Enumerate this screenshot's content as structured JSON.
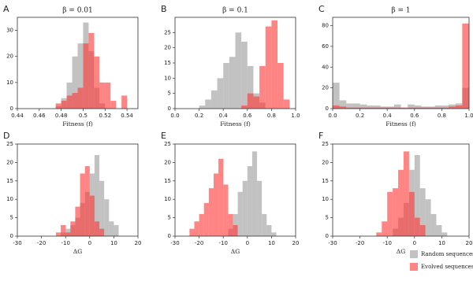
{
  "chart_data": [
    {
      "type": "histogram",
      "label": "A",
      "title": "β = 0.01",
      "xlabel": "Fitness (f)",
      "xlim": [
        0.44,
        0.55
      ],
      "xticks": [
        0.44,
        0.46,
        0.48,
        0.5,
        0.52,
        0.54
      ],
      "ylim": [
        0,
        35
      ],
      "yticks": [
        0,
        10,
        20,
        30
      ],
      "series": [
        {
          "name": "Random sequences",
          "color": "#999999",
          "bins": [
            0.475,
            0.48,
            0.485,
            0.49,
            0.495,
            0.5,
            0.505,
            0.51,
            0.515,
            0.52
          ],
          "values": [
            1,
            4,
            10,
            20,
            25,
            33,
            22,
            8,
            2
          ]
        },
        {
          "name": "Evolved sequences",
          "color": "#ff3333",
          "bins": [
            0.475,
            0.48,
            0.485,
            0.49,
            0.495,
            0.5,
            0.505,
            0.51,
            0.515,
            0.52,
            0.525,
            0.53,
            0.535,
            0.54
          ],
          "values": [
            2,
            3,
            5,
            6,
            8,
            25,
            29,
            20,
            10,
            10,
            3,
            0,
            5
          ]
        }
      ]
    },
    {
      "type": "histogram",
      "label": "B",
      "title": "β = 0.1",
      "xlabel": "Fitness (f)",
      "xlim": [
        0,
        1
      ],
      "xticks": [
        {
          "value": 0,
          "label": "0.0"
        },
        0.2,
        0.4,
        0.6,
        0.8,
        {
          "value": 1,
          "label": "1.0"
        }
      ],
      "ylim": [
        0,
        30
      ],
      "yticks": [
        0,
        5,
        10,
        15,
        20,
        25
      ],
      "series": [
        {
          "color": "#999999",
          "bins": [
            0.2,
            0.25,
            0.3,
            0.35,
            0.4,
            0.45,
            0.5,
            0.55,
            0.6,
            0.65,
            0.7,
            0.75
          ],
          "values": [
            1,
            3,
            6,
            10,
            15,
            17,
            25,
            22,
            14,
            5,
            2
          ]
        },
        {
          "color": "#ff3333",
          "bins": [
            0.55,
            0.6,
            0.65,
            0.7,
            0.75,
            0.8,
            0.85,
            0.9,
            0.95
          ],
          "values": [
            1,
            5,
            4,
            14,
            27,
            29,
            15,
            3
          ]
        }
      ]
    },
    {
      "type": "histogram",
      "label": "C",
      "title": "β = 1",
      "xlabel": "Fitness (f)",
      "xlim": [
        0,
        1
      ],
      "xticks": [
        {
          "value": 0,
          "label": "0.0"
        },
        0.2,
        0.4,
        0.6,
        0.8,
        {
          "value": 1,
          "label": "1.0"
        }
      ],
      "ylim": [
        0,
        88
      ],
      "yticks": [
        0,
        20,
        40,
        60,
        80
      ],
      "series": [
        {
          "color": "#999999",
          "bins": [
            0,
            0.05,
            0.1,
            0.15,
            0.2,
            0.25,
            0.3,
            0.35,
            0.4,
            0.45,
            0.5,
            0.55,
            0.6,
            0.65,
            0.7,
            0.75,
            0.8,
            0.85,
            0.9,
            0.95,
            1
          ],
          "values": [
            25,
            8,
            5,
            5,
            4,
            3,
            3,
            2,
            2,
            4,
            1,
            4,
            3,
            2,
            2,
            3,
            3,
            4,
            5,
            20
          ]
        },
        {
          "color": "#ff3333",
          "bins": [
            0,
            0.05,
            0.1,
            0.15,
            0.2,
            0.25,
            0.3,
            0.35,
            0.4,
            0.45,
            0.5,
            0.55,
            0.6,
            0.65,
            0.7,
            0.75,
            0.8,
            0.85,
            0.9,
            0.95,
            1
          ],
          "values": [
            3,
            2,
            1,
            1,
            1,
            1,
            1,
            1,
            1,
            1,
            1,
            1,
            1,
            1,
            1,
            1,
            1,
            2,
            3,
            82
          ]
        }
      ]
    },
    {
      "type": "histogram",
      "label": "D",
      "xlabel": "ΔG",
      "xlim": [
        -30,
        20
      ],
      "xticks": [
        -30,
        -20,
        -10,
        0,
        10,
        20
      ],
      "ylim": [
        0,
        25
      ],
      "yticks": [
        0,
        5,
        10,
        15,
        20,
        25
      ],
      "series": [
        {
          "color": "#999999",
          "bins": [
            -12,
            -10,
            -8,
            -6,
            -4,
            -2,
            0,
            2,
            4,
            6,
            8,
            10,
            12
          ],
          "values": [
            1,
            2,
            3,
            5,
            9,
            12,
            17,
            22,
            15,
            10,
            4,
            3
          ]
        },
        {
          "color": "#ff3333",
          "bins": [
            -14,
            -12,
            -10,
            -8,
            -6,
            -4,
            -2,
            0,
            2,
            4,
            6
          ],
          "values": [
            1,
            3,
            1,
            4,
            8,
            17,
            19,
            11,
            4,
            2
          ]
        }
      ]
    },
    {
      "type": "histogram",
      "label": "E",
      "xlabel": "ΔG",
      "xlim": [
        -30,
        20
      ],
      "xticks": [
        -30,
        -20,
        -10,
        0,
        10,
        20
      ],
      "ylim": [
        0,
        25
      ],
      "yticks": [
        0,
        5,
        10,
        15,
        20,
        25
      ],
      "series": [
        {
          "color": "#999999",
          "bins": [
            -8,
            -6,
            -4,
            -2,
            0,
            2,
            4,
            6,
            8,
            10,
            12
          ],
          "values": [
            2,
            6,
            12,
            15,
            19,
            23,
            15,
            6,
            3,
            1
          ]
        },
        {
          "color": "#ff3333",
          "bins": [
            -24,
            -22,
            -20,
            -18,
            -16,
            -14,
            -12,
            -10,
            -8,
            -6,
            -4
          ],
          "values": [
            2,
            4,
            6,
            9,
            13,
            17,
            21,
            14,
            6,
            3
          ]
        }
      ]
    },
    {
      "type": "histogram",
      "label": "F",
      "xlabel": "ΔG",
      "xlim": [
        -30,
        20
      ],
      "xticks": [
        -30,
        -20,
        -10,
        0,
        10,
        20
      ],
      "ylim": [
        0,
        25
      ],
      "yticks": [
        0,
        5,
        10,
        15,
        20,
        25
      ],
      "series": [
        {
          "color": "#999999",
          "bins": [
            -8,
            -6,
            -4,
            -2,
            0,
            2,
            4,
            6,
            8,
            10,
            12
          ],
          "values": [
            2,
            5,
            9,
            18,
            22,
            13,
            10,
            6,
            3,
            1
          ]
        },
        {
          "color": "#ff3333",
          "bins": [
            -14,
            -12,
            -10,
            -8,
            -6,
            -4,
            -2,
            0,
            2,
            4
          ],
          "values": [
            1,
            4,
            12,
            13,
            18,
            23,
            12,
            5,
            3
          ]
        }
      ]
    }
  ]
}
